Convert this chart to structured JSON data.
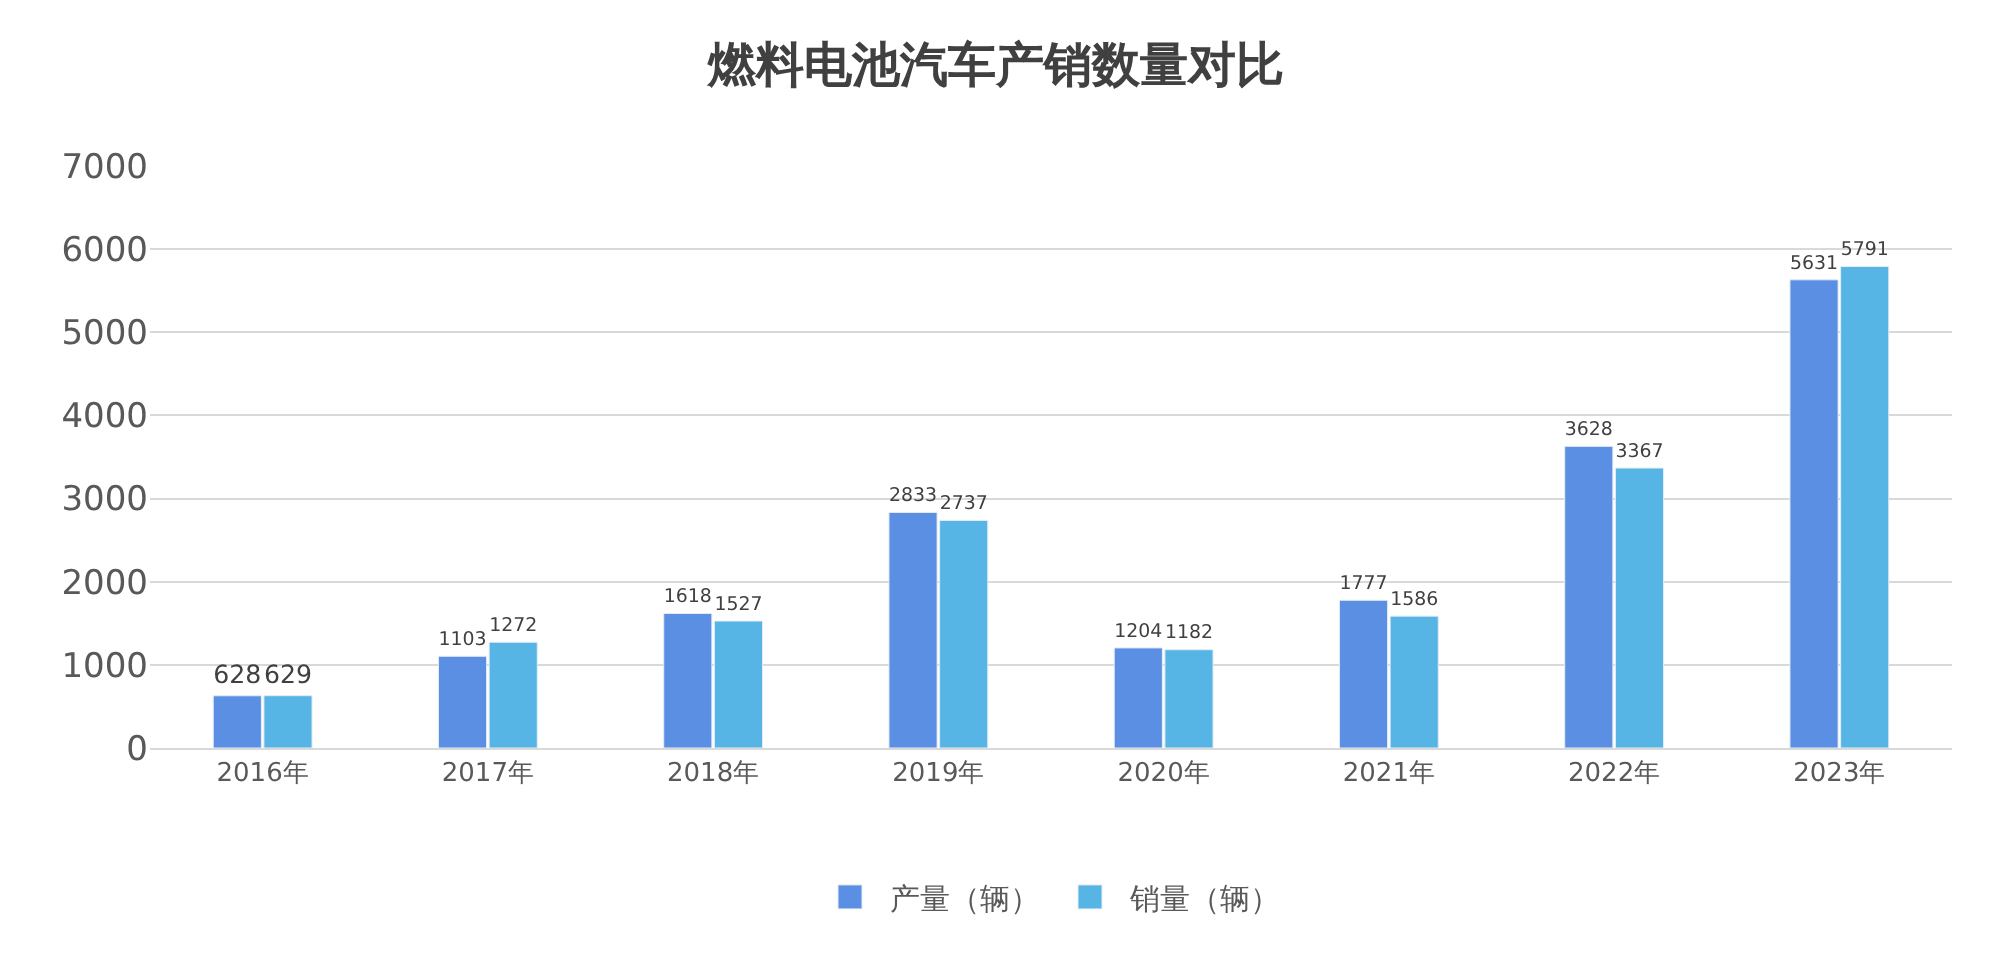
{
  "chart_data": {
    "type": "bar",
    "title": "燃料电池汽车产销数量对比",
    "categories": [
      "2016年",
      "2017年",
      "2018年",
      "2019年",
      "2020年",
      "2021年",
      "2022年",
      "2023年"
    ],
    "series": [
      {
        "name": "产量（辆）",
        "color": "#5b8fe3",
        "values": [
          628,
          1103,
          1618,
          2833,
          1204,
          1777,
          3628,
          5631
        ]
      },
      {
        "name": "销量（辆）",
        "color": "#56b5e5",
        "values": [
          629,
          1272,
          1527,
          2737,
          1182,
          1586,
          3367,
          5791
        ]
      }
    ],
    "ylim": [
      0,
      7000
    ],
    "yticks": [
      0,
      1000,
      2000,
      3000,
      4000,
      5000,
      6000,
      7000
    ],
    "grid": "y",
    "legend": "bottom",
    "data_labels": true
  }
}
